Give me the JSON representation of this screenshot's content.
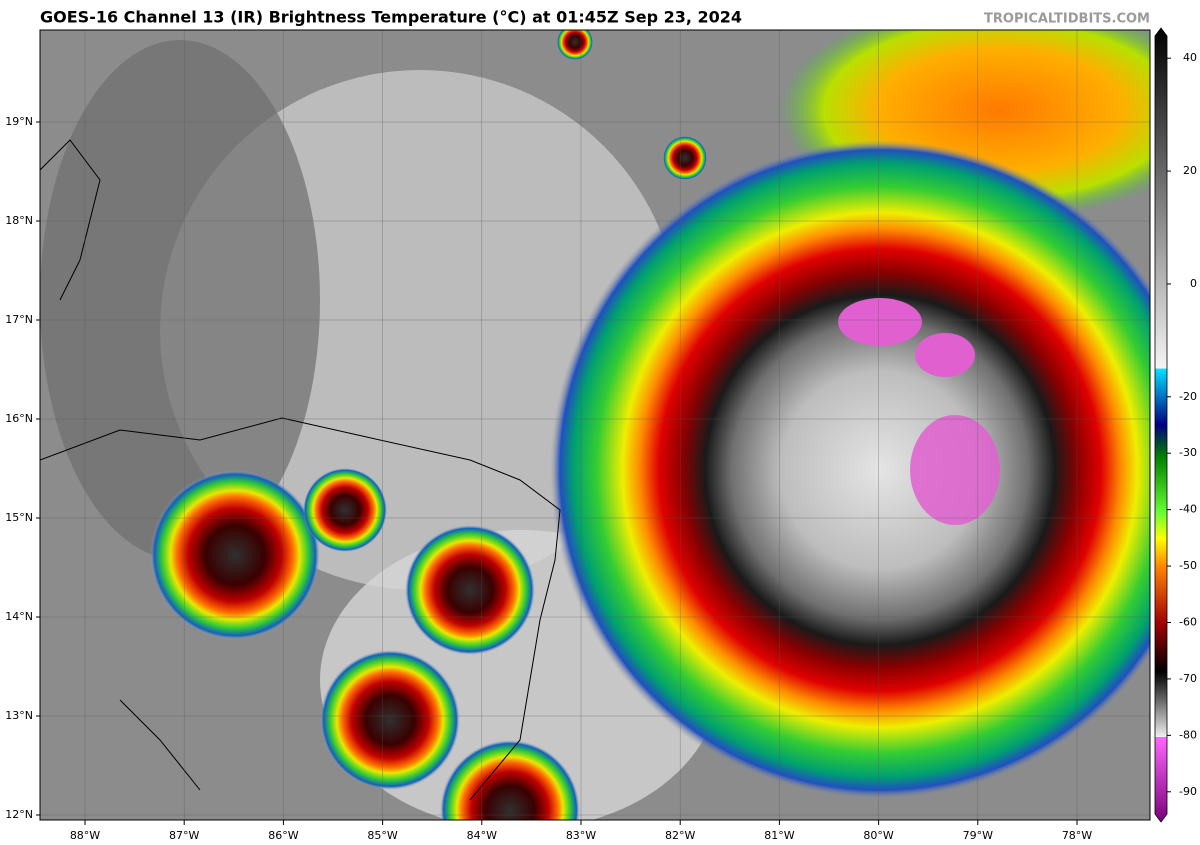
{
  "header": {
    "title": "GOES-16 Channel 13 (IR) Brightness Temperature (°C) at 01:45Z Sep 23, 2024",
    "credit": "TROPICALTIDBITS.COM"
  },
  "map": {
    "lat_labels": [
      "19°N",
      "18°N",
      "17°N",
      "16°N",
      "15°N",
      "14°N",
      "13°N",
      "12°N"
    ],
    "lon_labels": [
      "88°W",
      "87°W",
      "86°W",
      "85°W",
      "84°W",
      "83°W",
      "82°W",
      "81°W",
      "80°W",
      "79°W",
      "78°W"
    ]
  },
  "colorbar": {
    "lim": [
      -95,
      45
    ],
    "ticks": [
      40,
      20,
      0,
      -20,
      -30,
      -40,
      -50,
      -60,
      -70,
      -80,
      -90
    ]
  }
}
